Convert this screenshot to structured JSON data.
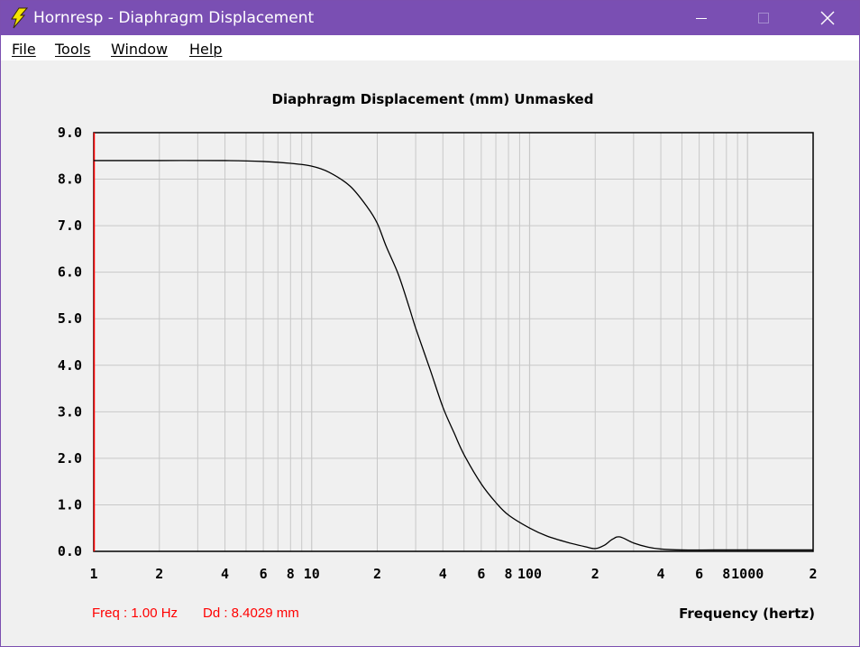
{
  "window": {
    "title": "Hornresp - Diaphragm Displacement",
    "icon": "lightning-bolt-icon",
    "controls": [
      "minimize-icon",
      "maximize-icon",
      "close-icon"
    ]
  },
  "menu": {
    "items": [
      {
        "label": "File",
        "key": "F"
      },
      {
        "label": "Tools",
        "key": "T"
      },
      {
        "label": "Window",
        "key": "W"
      },
      {
        "label": "Help",
        "key": "H"
      }
    ]
  },
  "readout": {
    "freq": "Freq : 1.00 Hz",
    "dd": "Dd : 8.4029 mm",
    "color": "#ff0000"
  },
  "colors": {
    "titlebar": "#7a4fb3",
    "cursor_line": "#ff0000",
    "curve": "#000000",
    "grid": "#c8c8c8"
  },
  "chart_data": {
    "type": "line",
    "title": "Diaphragm Displacement (mm)   Unmasked",
    "xlabel": "Frequency (hertz)",
    "ylabel": "",
    "x_scale": "log",
    "xlim": [
      1,
      2000
    ],
    "ylim": [
      0,
      9
    ],
    "grid": true,
    "y_ticks": [
      "0.0",
      "1.0",
      "2.0",
      "3.0",
      "4.0",
      "5.0",
      "6.0",
      "7.0",
      "8.0",
      "9.0"
    ],
    "x_ticks": [
      {
        "value": 1,
        "label": "1"
      },
      {
        "value": 2,
        "label": "2"
      },
      {
        "value": 4,
        "label": "4"
      },
      {
        "value": 6,
        "label": "6"
      },
      {
        "value": 8,
        "label": "8"
      },
      {
        "value": 10,
        "label": "10"
      },
      {
        "value": 20,
        "label": "2"
      },
      {
        "value": 40,
        "label": "4"
      },
      {
        "value": 60,
        "label": "6"
      },
      {
        "value": 80,
        "label": "8"
      },
      {
        "value": 100,
        "label": "100"
      },
      {
        "value": 200,
        "label": "2"
      },
      {
        "value": 400,
        "label": "4"
      },
      {
        "value": 600,
        "label": "6"
      },
      {
        "value": 800,
        "label": "8"
      },
      {
        "value": 1000,
        "label": "1000"
      },
      {
        "value": 2000,
        "label": "2"
      }
    ],
    "cursor_freq": 1.0,
    "series": [
      {
        "x": [
          1,
          2,
          4,
          6,
          8,
          10,
          12,
          15,
          18,
          20,
          22,
          25,
          28,
          30,
          35,
          40,
          45,
          50,
          60,
          70,
          80,
          100,
          120,
          150,
          180,
          200,
          220,
          240,
          260,
          300,
          350,
          400,
          500,
          700,
          1000,
          2000
        ],
        "y": [
          8.4,
          8.4,
          8.4,
          8.38,
          8.34,
          8.28,
          8.15,
          7.85,
          7.4,
          7.05,
          6.55,
          5.95,
          5.25,
          4.8,
          3.9,
          3.1,
          2.55,
          2.08,
          1.45,
          1.05,
          0.78,
          0.5,
          0.33,
          0.19,
          0.1,
          0.06,
          0.13,
          0.26,
          0.31,
          0.18,
          0.09,
          0.05,
          0.03,
          0.03,
          0.03,
          0.03
        ]
      }
    ]
  }
}
